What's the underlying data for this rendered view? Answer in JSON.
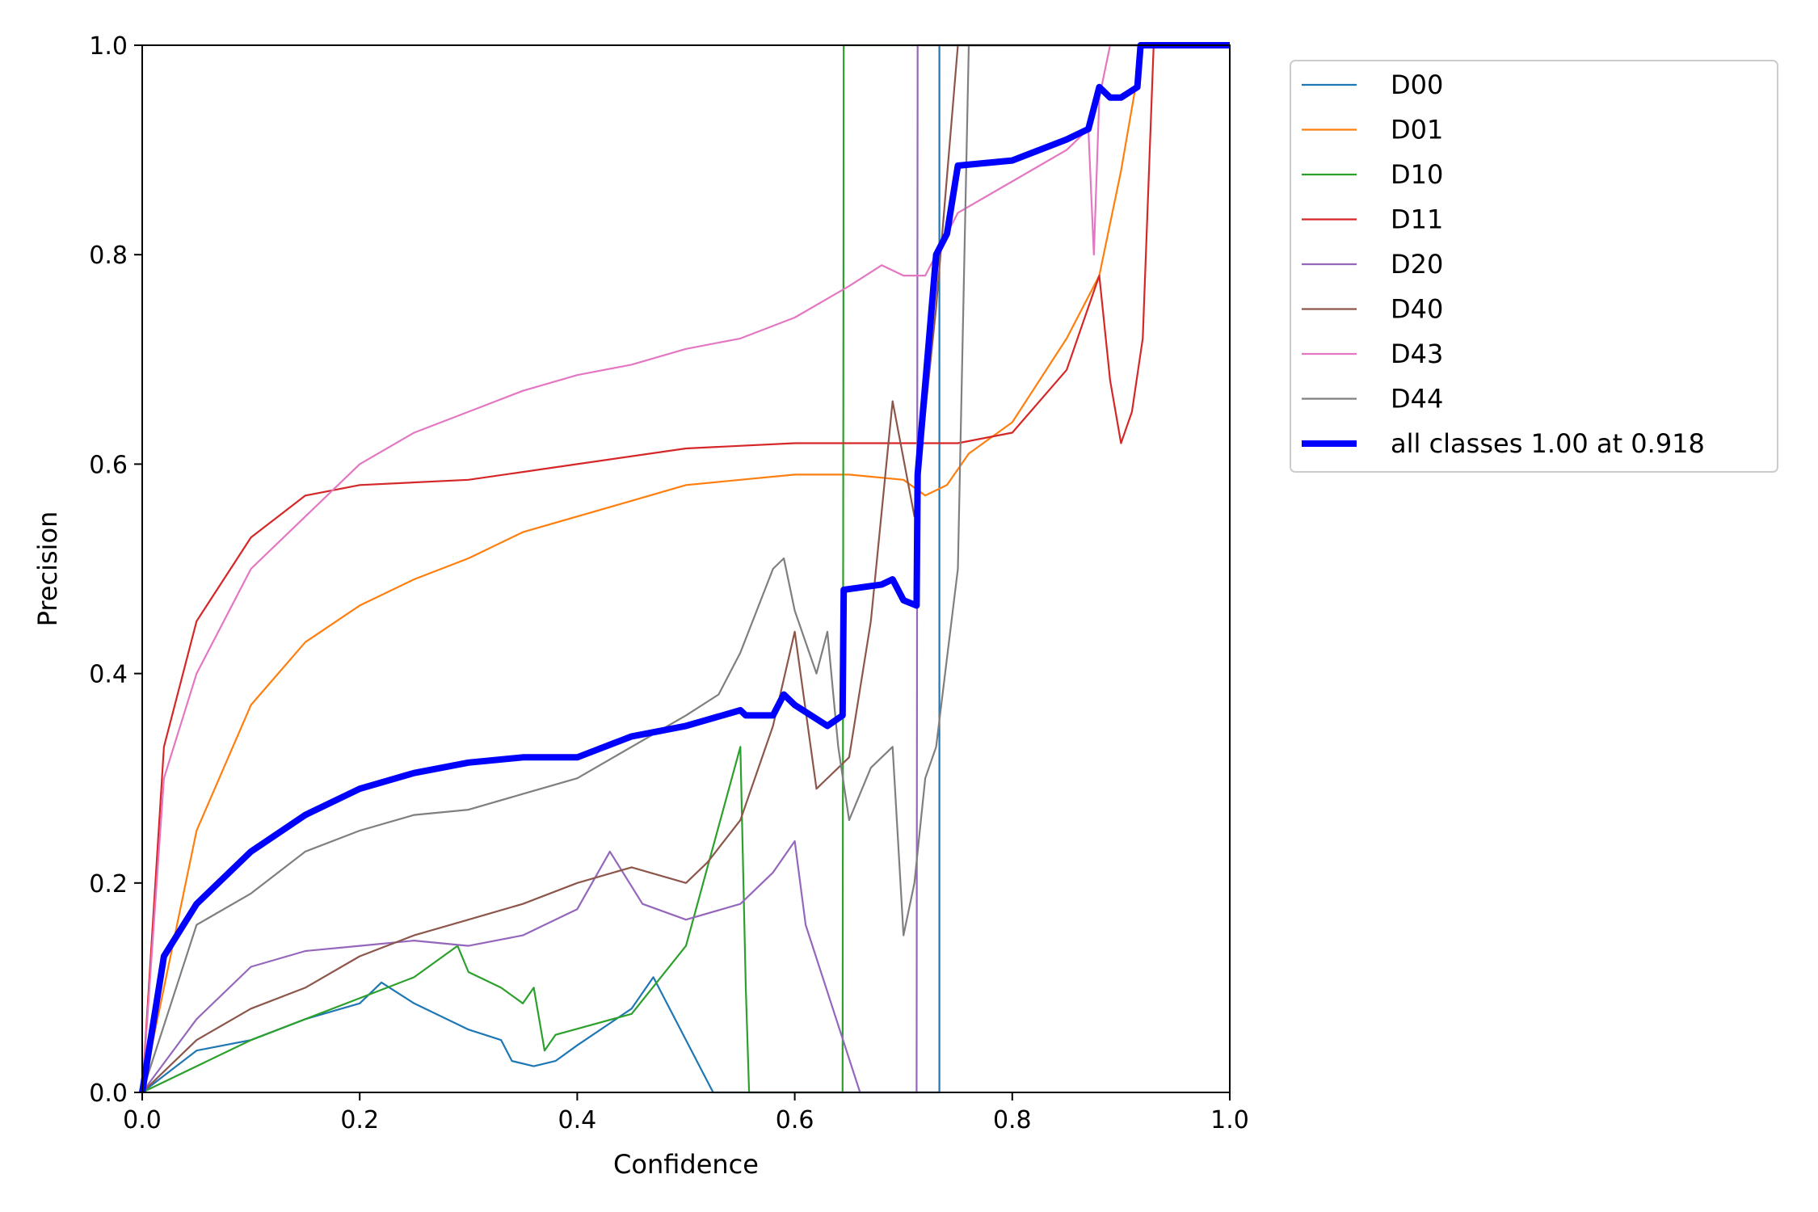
{
  "chart_data": {
    "type": "line",
    "title": "",
    "xlabel": "Confidence",
    "ylabel": "Precision",
    "xlim": [
      0,
      1
    ],
    "ylim": [
      0,
      1
    ],
    "grid": false,
    "legend_position": "outside-top-right",
    "xticks": [
      "0.0",
      "0.2",
      "0.4",
      "0.6",
      "0.8",
      "1.0"
    ],
    "yticks": [
      "0.0",
      "0.2",
      "0.4",
      "0.6",
      "0.8",
      "1.0"
    ],
    "series": [
      {
        "name": "D00",
        "color": "#1f77b4",
        "x": [
          0,
          0.05,
          0.1,
          0.15,
          0.2,
          0.22,
          0.25,
          0.3,
          0.33,
          0.34,
          0.36,
          0.38,
          0.4,
          0.45,
          0.47,
          0.5,
          0.525,
          0.6,
          0.7,
          0.733,
          0.733,
          0.8,
          1.0
        ],
        "y": [
          0,
          0.04,
          0.05,
          0.07,
          0.085,
          0.105,
          0.085,
          0.06,
          0.05,
          0.03,
          0.025,
          0.03,
          0.045,
          0.08,
          0.11,
          0.05,
          0,
          0,
          0,
          0,
          1.0,
          1.0,
          1.0
        ]
      },
      {
        "name": "D01",
        "color": "#ff7f0e",
        "x": [
          0,
          0.05,
          0.1,
          0.15,
          0.2,
          0.25,
          0.3,
          0.35,
          0.4,
          0.45,
          0.5,
          0.55,
          0.6,
          0.65,
          0.7,
          0.72,
          0.74,
          0.76,
          0.8,
          0.85,
          0.88,
          0.9,
          0.92,
          1.0
        ],
        "y": [
          0,
          0.25,
          0.37,
          0.43,
          0.465,
          0.49,
          0.51,
          0.535,
          0.55,
          0.565,
          0.58,
          0.585,
          0.59,
          0.59,
          0.585,
          0.57,
          0.58,
          0.61,
          0.64,
          0.72,
          0.78,
          0.88,
          1.0,
          1.0
        ]
      },
      {
        "name": "D10",
        "color": "#2ca02c",
        "x": [
          0,
          0.1,
          0.2,
          0.25,
          0.29,
          0.3,
          0.33,
          0.35,
          0.36,
          0.37,
          0.38,
          0.45,
          0.5,
          0.55,
          0.555,
          0.558,
          0.6,
          0.644,
          0.645,
          0.7,
          0.8,
          1.0
        ],
        "y": [
          0,
          0.05,
          0.09,
          0.11,
          0.14,
          0.115,
          0.1,
          0.085,
          0.1,
          0.04,
          0.055,
          0.075,
          0.14,
          0.33,
          0.1,
          0,
          0,
          0,
          1.0,
          1.0,
          1.0,
          1.0
        ]
      },
      {
        "name": "D11",
        "color": "#d62728",
        "x": [
          0,
          0.02,
          0.05,
          0.1,
          0.15,
          0.2,
          0.3,
          0.4,
          0.5,
          0.6,
          0.7,
          0.75,
          0.8,
          0.85,
          0.87,
          0.88,
          0.89,
          0.9,
          0.91,
          0.92,
          0.93,
          1.0
        ],
        "y": [
          0,
          0.33,
          0.45,
          0.53,
          0.57,
          0.58,
          0.585,
          0.6,
          0.615,
          0.62,
          0.62,
          0.62,
          0.63,
          0.69,
          0.75,
          0.78,
          0.68,
          0.62,
          0.65,
          0.72,
          1.0,
          1.0
        ]
      },
      {
        "name": "D20",
        "color": "#9467bd",
        "x": [
          0,
          0.05,
          0.1,
          0.15,
          0.2,
          0.25,
          0.3,
          0.35,
          0.4,
          0.43,
          0.46,
          0.5,
          0.55,
          0.58,
          0.6,
          0.61,
          0.66,
          0.7,
          0.712,
          0.713,
          0.8,
          1.0
        ],
        "y": [
          0,
          0.07,
          0.12,
          0.135,
          0.14,
          0.145,
          0.14,
          0.15,
          0.175,
          0.23,
          0.18,
          0.165,
          0.18,
          0.21,
          0.24,
          0.16,
          0,
          0,
          0,
          1.0,
          1.0,
          1.0
        ]
      },
      {
        "name": "D40",
        "color": "#8c564b",
        "x": [
          0,
          0.05,
          0.1,
          0.15,
          0.2,
          0.25,
          0.3,
          0.35,
          0.4,
          0.45,
          0.5,
          0.52,
          0.55,
          0.58,
          0.6,
          0.62,
          0.65,
          0.67,
          0.69,
          0.71,
          0.73,
          0.75,
          1.0
        ],
        "y": [
          0,
          0.05,
          0.08,
          0.1,
          0.13,
          0.15,
          0.165,
          0.18,
          0.2,
          0.215,
          0.2,
          0.22,
          0.26,
          0.35,
          0.44,
          0.29,
          0.32,
          0.45,
          0.66,
          0.55,
          0.75,
          1.0,
          1.0
        ]
      },
      {
        "name": "D43",
        "color": "#e377c2",
        "x": [
          0,
          0.02,
          0.05,
          0.1,
          0.15,
          0.2,
          0.25,
          0.3,
          0.35,
          0.4,
          0.45,
          0.5,
          0.55,
          0.6,
          0.65,
          0.68,
          0.7,
          0.72,
          0.75,
          0.8,
          0.85,
          0.87,
          0.875,
          0.88,
          0.89,
          1.0
        ],
        "y": [
          0,
          0.3,
          0.4,
          0.5,
          0.55,
          0.6,
          0.63,
          0.65,
          0.67,
          0.685,
          0.695,
          0.71,
          0.72,
          0.74,
          0.77,
          0.79,
          0.78,
          0.78,
          0.84,
          0.87,
          0.9,
          0.92,
          0.8,
          0.95,
          1.0,
          1.0
        ]
      },
      {
        "name": "D44",
        "color": "#7f7f7f",
        "x": [
          0,
          0.05,
          0.1,
          0.15,
          0.2,
          0.25,
          0.3,
          0.35,
          0.4,
          0.45,
          0.5,
          0.53,
          0.55,
          0.58,
          0.59,
          0.6,
          0.62,
          0.63,
          0.64,
          0.65,
          0.67,
          0.69,
          0.7,
          0.71,
          0.72,
          0.73,
          0.75,
          0.76,
          1.0
        ],
        "y": [
          0,
          0.16,
          0.19,
          0.23,
          0.25,
          0.265,
          0.27,
          0.285,
          0.3,
          0.33,
          0.36,
          0.38,
          0.42,
          0.5,
          0.51,
          0.46,
          0.4,
          0.44,
          0.33,
          0.26,
          0.31,
          0.33,
          0.15,
          0.2,
          0.3,
          0.33,
          0.5,
          1.0,
          1.0
        ]
      },
      {
        "name": "all classes 1.00 at 0.918",
        "color": "#0000ff",
        "x": [
          0,
          0.02,
          0.05,
          0.1,
          0.15,
          0.2,
          0.25,
          0.3,
          0.35,
          0.4,
          0.45,
          0.5,
          0.55,
          0.555,
          0.58,
          0.59,
          0.6,
          0.63,
          0.644,
          0.645,
          0.68,
          0.69,
          0.7,
          0.712,
          0.713,
          0.73,
          0.74,
          0.75,
          0.8,
          0.85,
          0.87,
          0.88,
          0.89,
          0.9,
          0.915,
          0.918,
          1.0
        ],
        "y": [
          0,
          0.13,
          0.18,
          0.23,
          0.265,
          0.29,
          0.305,
          0.315,
          0.32,
          0.32,
          0.34,
          0.35,
          0.365,
          0.36,
          0.36,
          0.38,
          0.37,
          0.35,
          0.36,
          0.48,
          0.485,
          0.49,
          0.47,
          0.465,
          0.59,
          0.8,
          0.82,
          0.885,
          0.89,
          0.91,
          0.92,
          0.96,
          0.95,
          0.95,
          0.96,
          1.0,
          1.0
        ]
      }
    ]
  }
}
